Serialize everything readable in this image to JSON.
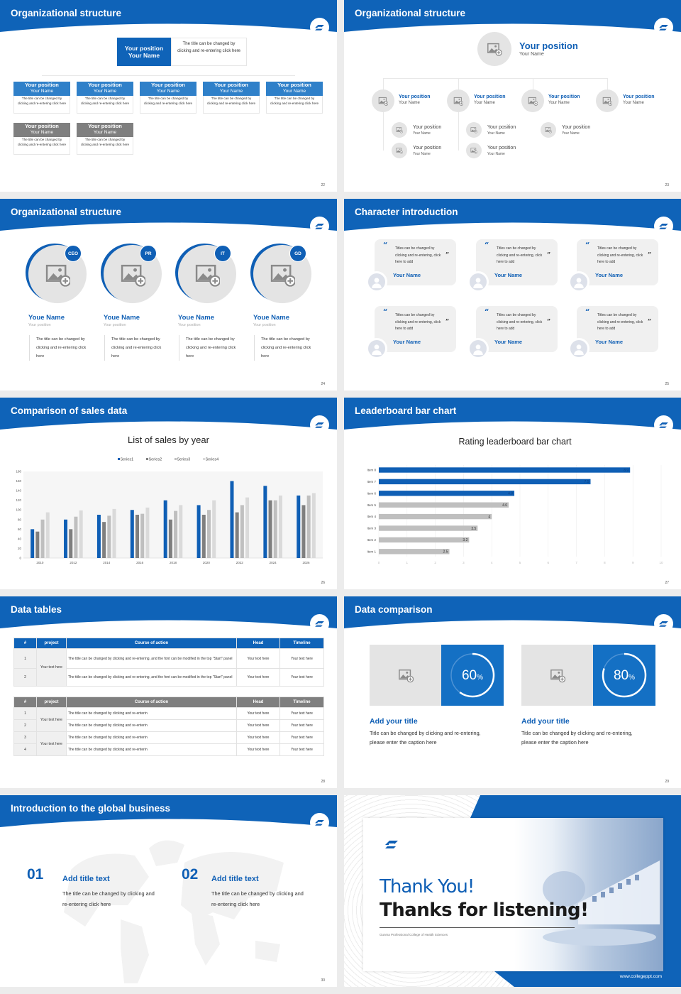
{
  "colors": {
    "brand": "#0f5fb5",
    "box_blue": "#2f80c9",
    "box_grey": "#7f7f7f",
    "placeholder": "#e4e4e4"
  },
  "slides": [
    {
      "number": "22",
      "title": "Organizational structure",
      "top": {
        "position": "Your position",
        "name": "Your Name",
        "note": "The title can be changed by clicking and re-entering click here"
      },
      "boxes": [
        {
          "position": "Your position",
          "name": "Your Name",
          "desc": "The title can be changed by clicking and re-entering click here",
          "color": "blue"
        },
        {
          "position": "Your position",
          "name": "Your Name",
          "desc": "The title can be changed by clicking and re-entering click here",
          "color": "blue"
        },
        {
          "position": "Your position",
          "name": "Your Name",
          "desc": "The title can be changed by clicking and re-entering click here",
          "color": "blue"
        },
        {
          "position": "Your position",
          "name": "Your Name",
          "desc": "The title can be changed by clicking and re-entering click here",
          "color": "blue"
        },
        {
          "position": "Your position",
          "name": "Your Name",
          "desc": "The title can be changed by clicking and re-entering click here",
          "color": "blue"
        },
        {
          "position": "Your position",
          "name": "Your Name",
          "desc": "The title can be changed by clicking and re-entering click here",
          "color": "grey"
        },
        {
          "position": "Your position",
          "name": "Your Name",
          "desc": "The title can be changed by clicking and re-entering click here",
          "color": "grey"
        }
      ]
    },
    {
      "number": "23",
      "title": "Organizational structure",
      "top": {
        "position": "Your position",
        "name": "Your Name"
      },
      "level2": [
        {
          "position": "Your position",
          "name": "Your Name"
        },
        {
          "position": "Your position",
          "name": "Your Name"
        },
        {
          "position": "Your position",
          "name": "Your Name"
        },
        {
          "position": "Your position",
          "name": "Your Name"
        }
      ],
      "level3": [
        {
          "position": "Your position",
          "name": "Your Name"
        },
        {
          "position": "Your position",
          "name": "Your Name"
        },
        {
          "position": "Your position",
          "name": "Your Name"
        },
        {
          "position": "Your position",
          "name": "Your Name"
        },
        {
          "position": "Your position",
          "name": "Your Name"
        }
      ]
    },
    {
      "number": "24",
      "title": "Organizational structure",
      "people": [
        {
          "badge": "CEO",
          "name": "Youe Name",
          "position": "Your position",
          "desc": "The title can be changed by clicking and re-entering click here"
        },
        {
          "badge": "PR",
          "name": "Youe Name",
          "position": "Your position",
          "desc": "The title can be changed by clicking and re-entering click here"
        },
        {
          "badge": "IT",
          "name": "Youe Name",
          "position": "Your position",
          "desc": "The title can be changed by clicking and re-entering click here"
        },
        {
          "badge": "GD",
          "name": "Youe Name",
          "position": "Your position",
          "desc": "The title can be changed by clicking and re-entering click here"
        }
      ]
    },
    {
      "number": "25",
      "title": "Character introduction",
      "cards": [
        {
          "quote": "Titles can be changed by clicking and re-entering, click here to add",
          "name": "Your Name"
        },
        {
          "quote": "Titles can be changed by clicking and re-entering, click here to add",
          "name": "Your Name"
        },
        {
          "quote": "Titles can be changed by clicking and re-entering, click here to add",
          "name": "Your Name"
        },
        {
          "quote": "Titles can be changed by clicking and re-entering, click here to add",
          "name": "Your Name"
        },
        {
          "quote": "Titles can be changed by clicking and re-entering, click here to add",
          "name": "Your Name"
        },
        {
          "quote": "Titles can be changed by clicking and re-entering, click here to add",
          "name": "Your Name"
        }
      ]
    },
    {
      "number": "26",
      "title": "Comparison of sales data"
    },
    {
      "number": "27",
      "title": "Leaderboard bar chart"
    },
    {
      "number": "28",
      "title": "Data tables",
      "table1": {
        "headers": [
          "#",
          "project",
          "Course of action",
          "Head",
          "Timeline"
        ],
        "project": "Your text here",
        "rows": [
          {
            "n": "1",
            "action": "The title can be changed by clicking and re-entering, and the font can be modified in the top \"Start\" panel",
            "head": "Your text here",
            "timeline": "Your text here"
          },
          {
            "n": "2",
            "action": "The title can be changed by clicking and re-entering, and the font can be modified in the top \"Start\" panel",
            "head": "Your text here",
            "timeline": "Your text here"
          }
        ]
      },
      "table2": {
        "headers": [
          "#",
          "project",
          "Course of action",
          "Head",
          "Timeline"
        ],
        "projects": [
          "Your text here",
          "Your text here"
        ],
        "rows": [
          {
            "n": "1",
            "action": "The title can be changed by clicking and re-enterin",
            "head": "Your text here",
            "timeline": "Your text here"
          },
          {
            "n": "2",
            "action": "The title can be changed by clicking and re-enterin",
            "head": "Your text here",
            "timeline": "Your text here"
          },
          {
            "n": "3",
            "action": "The title can be changed by clicking and re-enterin",
            "head": "Your text here",
            "timeline": "Your text here"
          },
          {
            "n": "4",
            "action": "The title can be changed by clicking and re-enterin",
            "head": "Your text here",
            "timeline": "Your text here"
          }
        ]
      }
    },
    {
      "number": "29",
      "title": "Data comparison",
      "items": [
        {
          "percent": 60,
          "value": "60",
          "unit": "%",
          "heading": "Add your title",
          "text": "Title can be changed by clicking and re-entering, please enter the caption here"
        },
        {
          "percent": 80,
          "value": "80",
          "unit": "%",
          "heading": "Add your title",
          "text": "Title can be changed by clicking and re-entering, please enter the caption here"
        }
      ]
    },
    {
      "number": "30",
      "title": "Introduction to the global business",
      "items": [
        {
          "num": "01",
          "heading": "Add title text",
          "text": "The title can be changed by clicking and re-entering click here"
        },
        {
          "num": "02",
          "heading": "Add title text",
          "text": "The title can be changed by clicking and re-entering click here"
        }
      ]
    },
    {
      "thank": "Thank You!",
      "thanks": "Thanks for listening!",
      "college": "Gunma Professional College of Health Sciences",
      "url": "www.collegeppt.com"
    }
  ],
  "chart_data": [
    {
      "type": "bar",
      "title": "List of sales by year",
      "categories": [
        "2010",
        "2012",
        "2014",
        "2016",
        "2018",
        "2020",
        "2022",
        "2024",
        "2026"
      ],
      "series": [
        {
          "name": "Series1",
          "color": "#0f5fb5",
          "values": [
            60,
            80,
            90,
            100,
            120,
            110,
            160,
            150,
            130
          ]
        },
        {
          "name": "Series2",
          "color": "#7f7f7f",
          "values": [
            55,
            60,
            75,
            90,
            80,
            90,
            95,
            120,
            110
          ]
        },
        {
          "name": "Series3",
          "color": "#bfbfbf",
          "values": [
            80,
            86,
            88,
            92,
            98,
            100,
            110,
            120,
            130
          ]
        },
        {
          "name": "Series4",
          "color": "#dadada",
          "values": [
            95,
            99,
            102,
            105,
            110,
            120,
            126,
            130,
            135
          ]
        }
      ],
      "ylim": [
        0,
        180
      ],
      "yticks": [
        "0",
        "20",
        "40",
        "60",
        "80",
        "100",
        "120",
        "140",
        "160",
        "180"
      ],
      "legend": "top",
      "grid": false
    },
    {
      "type": "bar",
      "orientation": "horizontal",
      "title": "Rating leaderboard bar chart",
      "categories": [
        "Item 8",
        "Item 7",
        "Item 6",
        "Item 5",
        "Item 4",
        "Item 3",
        "Item 2",
        "Item 1"
      ],
      "values": [
        8.9,
        7.5,
        4.8,
        4.6,
        4,
        3.5,
        3.2,
        2.5
      ],
      "labels": [
        "8.9",
        "7.5",
        "4.8",
        "4.6",
        "4",
        "3.5",
        "3.2",
        "2.5"
      ],
      "highlight_color": "#0f5fb5",
      "color": "#bfbfbf",
      "highlight_top": 3,
      "xlim": [
        0,
        10
      ],
      "xticks": [
        "0",
        "1",
        "2",
        "3",
        "4",
        "5",
        "6",
        "7",
        "8",
        "9",
        "10"
      ],
      "grid": true
    }
  ]
}
